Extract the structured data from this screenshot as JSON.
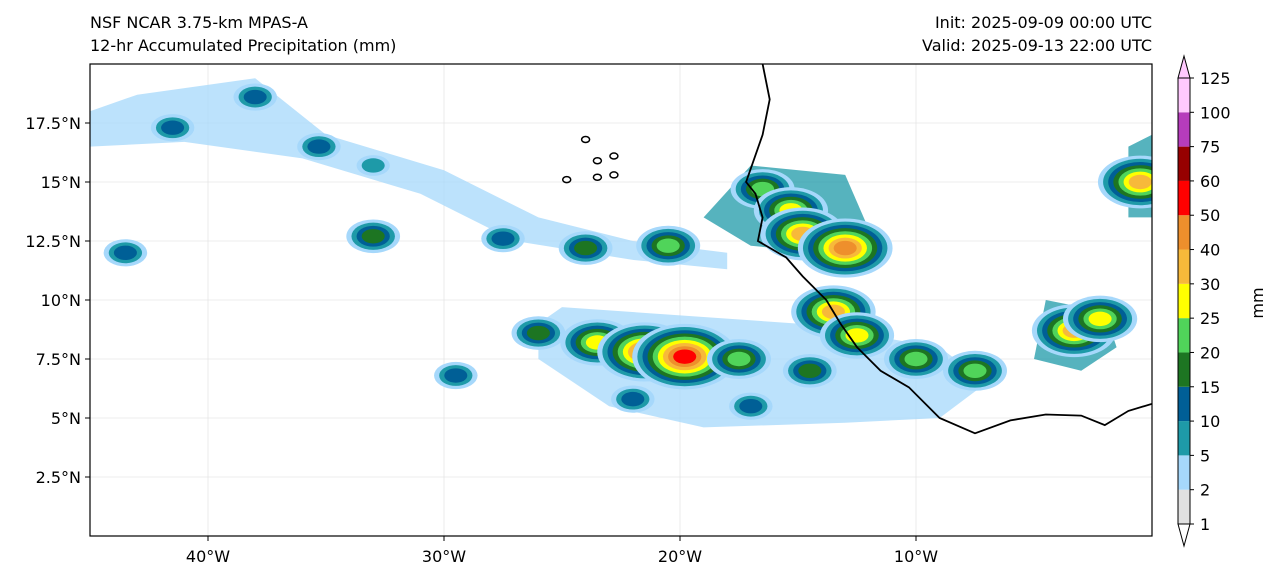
{
  "title_left": [
    "NSF NCAR 3.75-km MPAS-A",
    "12-hr Accumulated Precipitation (mm)"
  ],
  "title_right": [
    "Init: 2025-09-09 00:00 UTC",
    "Valid: 2025-09-13 22:00 UTC"
  ],
  "map": {
    "lon_range": [
      -45,
      0
    ],
    "lat_range": [
      0,
      20
    ],
    "lat_ticks": [
      {
        "value": 2.5,
        "label": "2.5°N"
      },
      {
        "value": 5,
        "label": "5°N"
      },
      {
        "value": 7.5,
        "label": "7.5°N"
      },
      {
        "value": 10,
        "label": "10°N"
      },
      {
        "value": 12.5,
        "label": "12.5°N"
      },
      {
        "value": 15,
        "label": "15°N"
      },
      {
        "value": 17.5,
        "label": "17.5°N"
      }
    ],
    "lon_ticks": [
      {
        "value": -40,
        "label": "40°W"
      },
      {
        "value": -30,
        "label": "30°W"
      },
      {
        "value": -20,
        "label": "20°W"
      },
      {
        "value": -10,
        "label": "10°W"
      }
    ],
    "coastline": [
      [
        -16.5,
        20
      ],
      [
        -16.2,
        18.5
      ],
      [
        -16.5,
        17
      ],
      [
        -17.2,
        15
      ],
      [
        -16.8,
        14.5
      ],
      [
        -16.5,
        13.5
      ],
      [
        -16.7,
        12.5
      ],
      [
        -15.5,
        11.8
      ],
      [
        -14.8,
        11
      ],
      [
        -13.8,
        10
      ],
      [
        -13.2,
        9
      ],
      [
        -12.5,
        8
      ],
      [
        -11.5,
        7
      ],
      [
        -10.3,
        6.3
      ],
      [
        -9,
        5
      ],
      [
        -7.5,
        4.35
      ],
      [
        -6,
        4.9
      ],
      [
        -4.5,
        5.15
      ],
      [
        -3,
        5.1
      ],
      [
        -2,
        4.7
      ],
      [
        -1,
        5.3
      ],
      [
        0,
        5.6
      ]
    ],
    "islands": [
      {
        "lon": -24,
        "lat": 16.8
      },
      {
        "lon": -23.5,
        "lat": 15.9
      },
      {
        "lon": -22.8,
        "lat": 16.1
      },
      {
        "lon": -24.8,
        "lat": 15.1
      },
      {
        "lon": -23.5,
        "lat": 15.2
      },
      {
        "lon": -22.8,
        "lat": 15.3
      }
    ]
  },
  "precip_bands": [
    {
      "points": [
        [
          -45,
          18
        ],
        [
          -43,
          18.7
        ],
        [
          -38,
          19.4
        ],
        [
          -35,
          17
        ],
        [
          -30,
          15.5
        ],
        [
          -26,
          13.5
        ],
        [
          -22,
          12.5
        ],
        [
          -18,
          12
        ],
        [
          -18,
          11.3
        ],
        [
          -22,
          11.7
        ],
        [
          -27,
          12.5
        ],
        [
          -31,
          14.5
        ],
        [
          -36,
          16
        ],
        [
          -41,
          16.7
        ],
        [
          -45,
          16.5
        ]
      ],
      "level": 2
    },
    {
      "points": [
        [
          -17,
          15.7
        ],
        [
          -13,
          15.3
        ],
        [
          -12,
          13
        ],
        [
          -14,
          12
        ],
        [
          -17,
          12.3
        ],
        [
          -19,
          13.5
        ]
      ],
      "level": 5
    },
    {
      "points": [
        [
          -25,
          9.7
        ],
        [
          -15,
          9
        ],
        [
          -9,
          8
        ],
        [
          -7,
          6.5
        ],
        [
          -9,
          5
        ],
        [
          -13,
          4.8
        ],
        [
          -19,
          4.6
        ],
        [
          -23,
          5.5
        ],
        [
          -26,
          7.5
        ],
        [
          -26,
          9
        ]
      ],
      "level": 2
    },
    {
      "points": [
        [
          -4.5,
          10
        ],
        [
          -2,
          9.5
        ],
        [
          -1.5,
          8
        ],
        [
          -3,
          7
        ],
        [
          -5,
          7.5
        ]
      ],
      "level": 5
    },
    {
      "points": [
        [
          -1,
          16.5
        ],
        [
          0,
          17
        ],
        [
          0,
          13.5
        ],
        [
          -1,
          13.5
        ]
      ],
      "level": 5
    }
  ],
  "precip_cells": [
    {
      "lon": -41.5,
      "lat": 17.3,
      "level": 10
    },
    {
      "lon": -38,
      "lat": 18.6,
      "level": 10
    },
    {
      "lon": -35.3,
      "lat": 16.5,
      "level": 10
    },
    {
      "lon": -33,
      "lat": 15.7,
      "level": 5
    },
    {
      "lon": -43.5,
      "lat": 12,
      "level": 10
    },
    {
      "lon": -33,
      "lat": 12.7,
      "level": 15
    },
    {
      "lon": -27.5,
      "lat": 12.6,
      "level": 10
    },
    {
      "lon": -24,
      "lat": 12.2,
      "level": 15
    },
    {
      "lon": -20.5,
      "lat": 12.3,
      "level": 20
    },
    {
      "lon": -16.5,
      "lat": 14.7,
      "level": 20
    },
    {
      "lon": -15.3,
      "lat": 13.8,
      "level": 25
    },
    {
      "lon": -14.8,
      "lat": 12.8,
      "level": 30
    },
    {
      "lon": -13,
      "lat": 12.2,
      "level": 40
    },
    {
      "lon": -13.5,
      "lat": 9.5,
      "level": 30
    },
    {
      "lon": -12.5,
      "lat": 8.5,
      "level": 25
    },
    {
      "lon": -10,
      "lat": 7.5,
      "level": 20
    },
    {
      "lon": -7.5,
      "lat": 7,
      "level": 20
    },
    {
      "lon": -3.3,
      "lat": 8.7,
      "level": 30
    },
    {
      "lon": -2.2,
      "lat": 9.2,
      "level": 25
    },
    {
      "lon": -0.5,
      "lat": 15,
      "level": 30
    },
    {
      "lon": -23.5,
      "lat": 8.2,
      "level": 25
    },
    {
      "lon": -21.5,
      "lat": 7.8,
      "level": 40
    },
    {
      "lon": -19.8,
      "lat": 7.6,
      "level": 50
    },
    {
      "lon": -17.5,
      "lat": 7.5,
      "level": 20
    },
    {
      "lon": -14.5,
      "lat": 7,
      "level": 15
    },
    {
      "lon": -22,
      "lat": 5.8,
      "level": 10
    },
    {
      "lon": -17,
      "lat": 5.5,
      "level": 10
    },
    {
      "lon": -26,
      "lat": 8.6,
      "level": 15
    },
    {
      "lon": -29.5,
      "lat": 6.8,
      "level": 10
    }
  ],
  "colorbar": {
    "label": "mm",
    "levels": [
      1,
      2,
      5,
      10,
      15,
      20,
      25,
      30,
      40,
      50,
      60,
      75,
      100,
      125
    ],
    "colors": [
      "#e1e1e1",
      "#a6d8fb",
      "#1e9aa8",
      "#005f96",
      "#1d7522",
      "#50d45a",
      "#ffff00",
      "#f7b93a",
      "#ee8f2c",
      "#ff0000",
      "#960000",
      "#b63cbc",
      "#ffc9fe"
    ],
    "extend_colors": {
      "under": "#ffffff",
      "over": "#ffc9fe"
    }
  }
}
